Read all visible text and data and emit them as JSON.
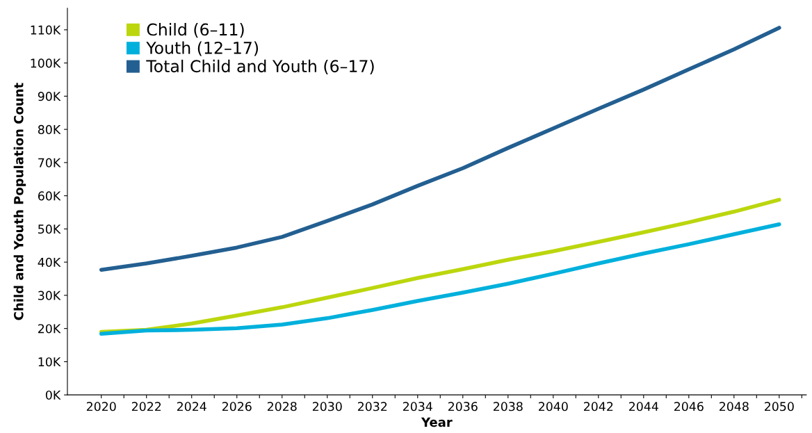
{
  "chart_data": {
    "type": "line",
    "xlabel": "Year",
    "ylabel": "Child and Youth Population Count",
    "x": [
      2020,
      2022,
      2024,
      2026,
      2028,
      2030,
      2032,
      2034,
      2036,
      2038,
      2040,
      2042,
      2044,
      2046,
      2048,
      2050
    ],
    "series": [
      {
        "name": "Child (6–11)",
        "color": "#bcd60e",
        "values": [
          19000,
          19600,
          21500,
          23900,
          26400,
          29300,
          32200,
          35200,
          37900,
          40700,
          43300,
          46100,
          49000,
          52000,
          55200,
          58800
        ]
      },
      {
        "name": "Youth (12–17)",
        "color": "#00b0dc",
        "values": [
          18400,
          19400,
          19600,
          20100,
          21200,
          23100,
          25600,
          28300,
          30800,
          33500,
          36500,
          39600,
          42600,
          45400,
          48400,
          51400
        ]
      },
      {
        "name": "Total Child and Youth (6–17)",
        "color": "#235f91",
        "values": [
          37700,
          39600,
          41900,
          44400,
          47600,
          52400,
          57400,
          63000,
          68300,
          74400,
          80300,
          86200,
          92000,
          98100,
          104100,
          110600
        ]
      }
    ],
    "xlim": [
      2018.5,
      2051.2
    ],
    "xticks": [
      2020,
      {
        "value": 2021,
        "label": null
      },
      2022,
      {
        "value": 2023,
        "label": null
      },
      2024,
      {
        "value": 2025,
        "label": null
      },
      2026,
      {
        "value": 2027,
        "label": null
      },
      2028,
      {
        "value": 2029,
        "label": null
      },
      2030,
      {
        "value": 2031,
        "label": null
      },
      2032,
      {
        "value": 2033,
        "label": null
      },
      2034,
      {
        "value": 2035,
        "label": null
      },
      2036,
      {
        "value": 2037,
        "label": null
      },
      2038,
      {
        "value": 2039,
        "label": null
      },
      2040,
      {
        "value": 2041,
        "label": null
      },
      2042,
      {
        "value": 2043,
        "label": null
      },
      2044,
      {
        "value": 2045,
        "label": null
      },
      2046,
      {
        "value": 2047,
        "label": null
      },
      2048,
      {
        "value": 2049,
        "label": null
      },
      2050,
      {
        "value": 2051,
        "label": null
      }
    ],
    "ylim": [
      0,
      116500
    ],
    "yticks": [
      {
        "value": 0,
        "label": "0K"
      },
      {
        "value": 10000,
        "label": "10K"
      },
      {
        "value": 20000,
        "label": "20K"
      },
      {
        "value": 30000,
        "label": "30K"
      },
      {
        "value": 40000,
        "label": "40K"
      },
      {
        "value": 50000,
        "label": "50K"
      },
      {
        "value": 60000,
        "label": "60K"
      },
      {
        "value": 70000,
        "label": "70K"
      },
      {
        "value": 80000,
        "label": "80K"
      },
      {
        "value": 90000,
        "label": "90K"
      },
      {
        "value": 100000,
        "label": "100K"
      },
      {
        "value": 110000,
        "label": "110K"
      }
    ],
    "grid": false,
    "legend": "top left",
    "marker": "none",
    "line_style": "solid"
  }
}
